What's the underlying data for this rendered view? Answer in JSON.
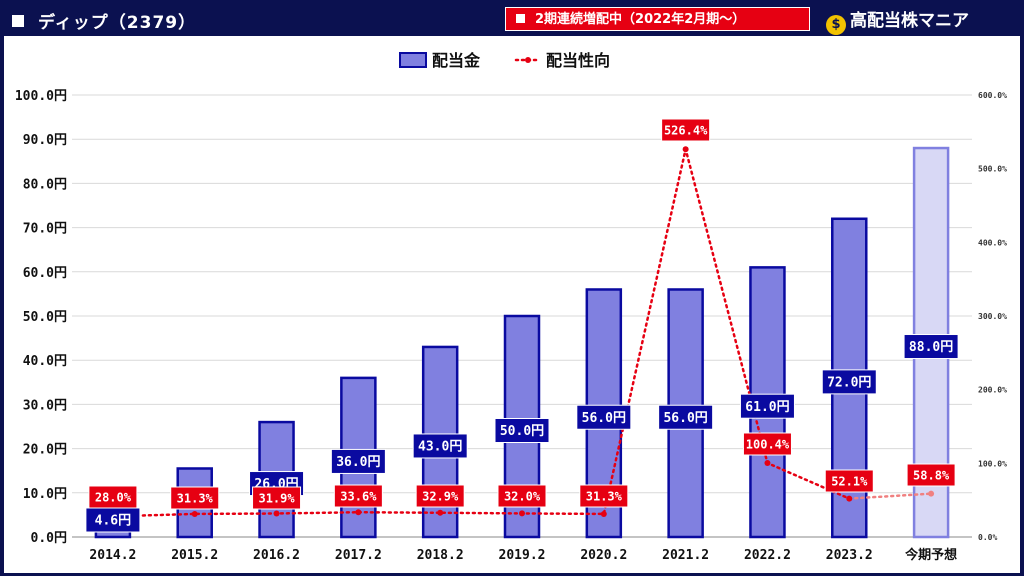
{
  "header": {
    "title": "ディップ（2379）",
    "badge": "2期連続増配中（2022年2月期～）",
    "brand": "高配当株マニア"
  },
  "colors": {
    "frame": "#0b1150",
    "bar_fill": "#8080e0",
    "bar_stroke": "#0a0aa0",
    "forecast_fill": "#d8d8f5",
    "forecast_stroke": "#8080e0",
    "ratio_line": "#e60012",
    "ratio_line_forecast": "#f08080",
    "bar_label_bg": "#0a0aa0",
    "ratio_label_bg": "#e60012"
  },
  "chart_data": {
    "type": "bar",
    "categories": [
      "2014.2",
      "2015.2",
      "2016.2",
      "2017.2",
      "2018.2",
      "2019.2",
      "2020.2",
      "2021.2",
      "2022.2",
      "2023.2",
      "今期予想"
    ],
    "bar_labels": [
      "4.6円",
      "",
      "26.0円",
      "36.0円",
      "43.0円",
      "50.0円",
      "56.0円",
      "56.0円",
      "61.0円",
      "72.0円",
      "88.0円"
    ],
    "ratio_labels": [
      "28.0%",
      "31.3%",
      "31.9%",
      "33.6%",
      "32.9%",
      "32.0%",
      "31.3%",
      "526.4%",
      "100.4%",
      "52.1%",
      "58.8%"
    ],
    "series": [
      {
        "name": "配当金",
        "type": "bar",
        "axis": "left",
        "values": [
          4.6,
          15.5,
          26.0,
          36.0,
          43.0,
          50.0,
          56.0,
          56.0,
          61.0,
          72.0,
          88.0
        ]
      },
      {
        "name": "配当性向",
        "type": "line",
        "axis": "right",
        "values": [
          28.0,
          31.3,
          31.9,
          33.6,
          32.9,
          32.0,
          31.3,
          526.4,
          100.4,
          52.1,
          58.8
        ]
      }
    ],
    "forecast_index": 10,
    "ylim": [
      0,
      100
    ],
    "y2lim": [
      0,
      600
    ],
    "yticks": [
      "0.0円",
      "10.0円",
      "20.0円",
      "30.0円",
      "40.0円",
      "50.0円",
      "60.0円",
      "70.0円",
      "80.0円",
      "90.0円",
      "100.0円"
    ],
    "y2ticks": [
      "0.0%",
      "100.0%",
      "200.0%",
      "300.0%",
      "400.0%",
      "500.0%",
      "600.0%"
    ],
    "legend": {
      "placement": "top-center",
      "bar": "配当金",
      "line": "配当性向"
    },
    "grid": true
  }
}
